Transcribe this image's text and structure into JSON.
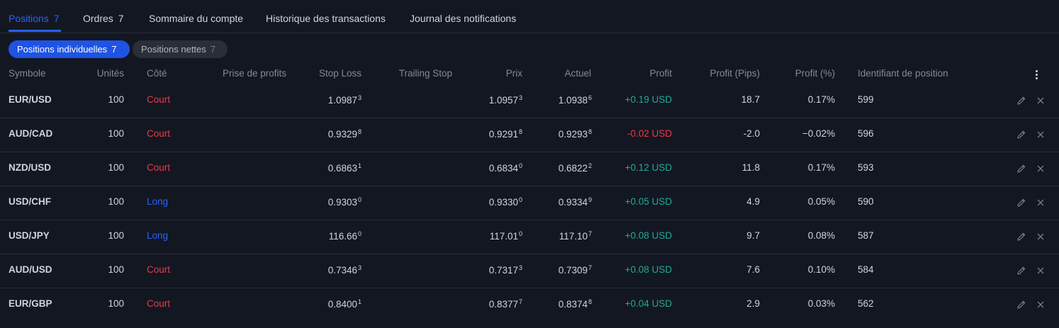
{
  "tabs": [
    {
      "label": "Positions",
      "count": "7",
      "active": true
    },
    {
      "label": "Ordres",
      "count": "7",
      "active": false
    },
    {
      "label": "Sommaire du compte",
      "count": "",
      "active": false
    },
    {
      "label": "Historique des transactions",
      "count": "",
      "active": false
    },
    {
      "label": "Journal des notifications",
      "count": "",
      "active": false
    }
  ],
  "filters": {
    "individual": {
      "label": "Positions individuelles",
      "count": "7"
    },
    "net": {
      "label": "Positions nettes",
      "count": "7"
    }
  },
  "columns": {
    "symbol": "Symbole",
    "units": "Unités",
    "side": "Côté",
    "take_profit": "Prise de profits",
    "stop_loss": "Stop Loss",
    "trailing_stop": "Trailing Stop",
    "price": "Prix",
    "current": "Actuel",
    "profit": "Profit",
    "profit_pips": "Profit (Pips)",
    "profit_pct": "Profit (%)",
    "position_id": "Identifiant de position"
  },
  "rows": [
    {
      "symbol": "EUR/USD",
      "units": "100",
      "side": "Court",
      "side_type": "short",
      "stop_loss": "1.0987",
      "stop_loss_pip": "3",
      "price": "1.0957",
      "price_pip": "3",
      "current": "1.0938",
      "current_pip": "6",
      "profit": "+0.19 USD",
      "profit_sign": "pos",
      "profit_pips": "18.7",
      "profit_pct": "0.17%",
      "position_id": "599"
    },
    {
      "symbol": "AUD/CAD",
      "units": "100",
      "side": "Court",
      "side_type": "short",
      "stop_loss": "0.9329",
      "stop_loss_pip": "8",
      "price": "0.9291",
      "price_pip": "8",
      "current": "0.9293",
      "current_pip": "8",
      "profit": "-0.02 USD",
      "profit_sign": "neg",
      "profit_pips": "-2.0",
      "profit_pct": "−0.02%",
      "position_id": "596"
    },
    {
      "symbol": "NZD/USD",
      "units": "100",
      "side": "Court",
      "side_type": "short",
      "stop_loss": "0.6863",
      "stop_loss_pip": "1",
      "price": "0.6834",
      "price_pip": "0",
      "current": "0.6822",
      "current_pip": "2",
      "profit": "+0.12 USD",
      "profit_sign": "pos",
      "profit_pips": "11.8",
      "profit_pct": "0.17%",
      "position_id": "593"
    },
    {
      "symbol": "USD/CHF",
      "units": "100",
      "side": "Long",
      "side_type": "long",
      "stop_loss": "0.9303",
      "stop_loss_pip": "0",
      "price": "0.9330",
      "price_pip": "0",
      "current": "0.9334",
      "current_pip": "9",
      "profit": "+0.05 USD",
      "profit_sign": "pos",
      "profit_pips": "4.9",
      "profit_pct": "0.05%",
      "position_id": "590"
    },
    {
      "symbol": "USD/JPY",
      "units": "100",
      "side": "Long",
      "side_type": "long",
      "stop_loss": "116.66",
      "stop_loss_pip": "0",
      "price": "117.01",
      "price_pip": "0",
      "current": "117.10",
      "current_pip": "7",
      "profit": "+0.08 USD",
      "profit_sign": "pos",
      "profit_pips": "9.7",
      "profit_pct": "0.08%",
      "position_id": "587"
    },
    {
      "symbol": "AUD/USD",
      "units": "100",
      "side": "Court",
      "side_type": "short",
      "stop_loss": "0.7346",
      "stop_loss_pip": "3",
      "price": "0.7317",
      "price_pip": "3",
      "current": "0.7309",
      "current_pip": "7",
      "profit": "+0.08 USD",
      "profit_sign": "pos",
      "profit_pips": "7.6",
      "profit_pct": "0.10%",
      "position_id": "584"
    },
    {
      "symbol": "EUR/GBP",
      "units": "100",
      "side": "Court",
      "side_type": "short",
      "stop_loss": "0.8400",
      "stop_loss_pip": "1",
      "price": "0.8377",
      "price_pip": "7",
      "current": "0.8374",
      "current_pip": "8",
      "profit": "+0.04 USD",
      "profit_sign": "pos",
      "profit_pips": "2.9",
      "profit_pct": "0.03%",
      "position_id": "562"
    }
  ],
  "icons": {
    "row_edit": "pencil-icon",
    "row_close": "close-icon",
    "columns_menu": "more-vertical-icon"
  },
  "colors": {
    "accent": "#2962ff",
    "short": "#f23645",
    "long": "#2962ff",
    "profit_pos": "#22ab94",
    "profit_neg": "#f23645",
    "background": "#131722"
  }
}
